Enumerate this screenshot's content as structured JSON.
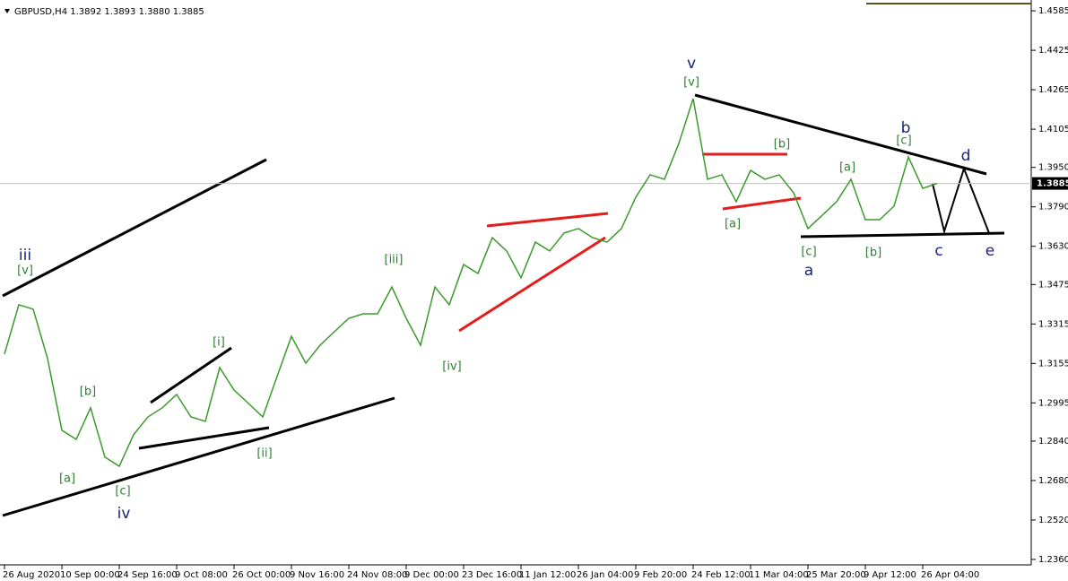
{
  "chart_data": {
    "type": "line",
    "title": "GBPUSD,H4  1.3892 1.3893 1.3880 1.3885",
    "color": "#3a9a2a",
    "categories": [
      "26 Aug 2020",
      null,
      null,
      null,
      "10 Sep 00:00",
      null,
      null,
      null,
      "24 Sep 16:00",
      null,
      null,
      null,
      "9 Oct 08:00",
      null,
      null,
      null,
      "26 Oct 00:00",
      null,
      null,
      null,
      "9 Nov 16:00",
      null,
      null,
      null,
      "24 Nov 08:00",
      null,
      null,
      null,
      "9 Dec 00:00",
      null,
      null,
      null,
      "23 Dec 16:00",
      null,
      null,
      null,
      "11 Jan 12:00",
      null,
      null,
      null,
      "26 Jan 04:00",
      null,
      null,
      null,
      "9 Feb 20:00",
      null,
      null,
      null,
      "24 Feb 12:00",
      null,
      null,
      null,
      "11 Mar 04:00",
      null,
      null,
      null,
      "25 Mar 20:00",
      null,
      null,
      null,
      "9 Apr 12:00",
      null,
      null,
      null,
      "26 Apr 04:00",
      null,
      null,
      null,
      null,
      null,
      null,
      null
    ],
    "values": [
      1.3193,
      1.3393,
      1.3375,
      1.3175,
      1.2884,
      1.2847,
      1.2975,
      1.2775,
      1.2738,
      1.2866,
      1.2938,
      1.2975,
      1.3029,
      1.2938,
      1.292,
      1.3138,
      1.3047,
      1.2993,
      1.2938,
      1.3102,
      1.3265,
      1.3156,
      1.3229,
      1.3284,
      1.3338,
      1.3356,
      1.3356,
      1.3465,
      1.3338,
      1.3229,
      1.3465,
      1.3393,
      1.3556,
      1.352,
      1.3665,
      1.3611,
      1.3502,
      1.3647,
      1.3611,
      1.3684,
      1.3702,
      1.3665,
      1.3647,
      1.3702,
      1.3829,
      1.392,
      1.3902,
      1.4047,
      1.4229,
      1.3902,
      1.392,
      1.3811,
      1.3938,
      1.3902,
      1.392,
      1.3847,
      1.3702,
      1.3756,
      1.3811,
      1.3902,
      1.3738,
      1.3738,
      1.3793,
      1.3992,
      1.3865,
      1.3885,
      null,
      null,
      null,
      null,
      null,
      null
    ],
    "ylim": [
      1.2338,
      1.4629
    ],
    "yticks": [
      {
        "value": 1.236,
        "label": "1.2360"
      },
      {
        "value": 1.252,
        "label": "1.2520"
      },
      {
        "value": 1.268,
        "label": "1.2680"
      },
      {
        "value": 1.284,
        "label": "1.2840"
      },
      {
        "value": 1.2995,
        "label": "1.2995"
      },
      {
        "value": 1.3155,
        "label": "1.3155"
      },
      1.3315,
      {
        "value": 1.3475,
        "label": "1.3475"
      },
      {
        "value": 1.363,
        "label": "1.3630"
      },
      {
        "value": 1.379,
        "label": "1.3790"
      },
      {
        "value": 1.395,
        "label": "1.3950"
      },
      1.4105,
      1.4265,
      1.4425,
      1.4585
    ],
    "grid": false,
    "last_price": 1.3885,
    "annotations": [
      {
        "text": "iii",
        "color": "#1a237e"
      },
      {
        "text": "[v]",
        "color": "#2e7d32"
      },
      {
        "text": "[b]",
        "color": "#2e7d32"
      },
      {
        "text": "[a]",
        "color": "#2e7d32"
      },
      {
        "text": "[c]",
        "color": "#2e7d32"
      },
      {
        "text": "iv",
        "color": "#1a237e"
      },
      {
        "text": "[i]",
        "color": "#2e7d32"
      },
      {
        "text": "[ii]",
        "color": "#2e7d32"
      },
      {
        "text": "[iii]",
        "color": "#2e7d32"
      },
      {
        "text": "[iv]",
        "color": "#2e7d32"
      },
      {
        "text": "v",
        "color": "#1a237e"
      },
      {
        "text": "[v]",
        "color": "#2e7d32"
      },
      {
        "text": "[a]",
        "color": "#2e7d32"
      },
      {
        "text": "[b]",
        "color": "#2e7d32"
      },
      {
        "text": "[c]",
        "color": "#2e7d32"
      },
      {
        "text": "a",
        "color": "#1a237e"
      },
      {
        "text": "[a]",
        "color": "#2e7d32"
      },
      {
        "text": "[b]",
        "color": "#2e7d32"
      },
      {
        "text": "b",
        "color": "#1a237e"
      },
      {
        "text": "[c]",
        "color": "#2e7d32"
      },
      {
        "text": "c",
        "color": "#1a237e"
      },
      {
        "text": "d",
        "color": "#1a237e"
      },
      {
        "text": "e",
        "color": "#1a237e"
      }
    ]
  }
}
